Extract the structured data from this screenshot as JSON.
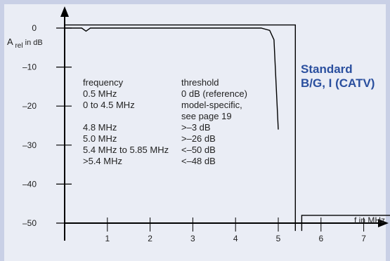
{
  "chart_data": {
    "type": "line",
    "title": "",
    "xlabel": "f in MHz",
    "ylabel_main": "A",
    "ylabel_sub": "rel",
    "ylabel_tail": " in dB",
    "xlim": [
      0,
      7.7
    ],
    "ylim": [
      -52,
      2
    ],
    "x_ticks": [
      1,
      2,
      3,
      4,
      5,
      6,
      7
    ],
    "y_ticks": [
      {
        "value": 0,
        "label": "0"
      },
      {
        "value": -10,
        "label": "–10"
      },
      {
        "value": -20,
        "label": "–20"
      },
      {
        "value": -30,
        "label": "–30"
      },
      {
        "value": -40,
        "label": "–40"
      },
      {
        "value": -50,
        "label": "–50"
      }
    ],
    "series": [
      {
        "name": "",
        "x": [
          0,
          0.4,
          0.5,
          0.6,
          4.6,
          4.8,
          4.9,
          5.0
        ],
        "y": [
          0,
          0,
          -0.8,
          0,
          0,
          -0.6,
          -3,
          -26
        ]
      }
    ],
    "mask": {
      "upper": {
        "x": [
          0,
          5.4,
          5.4
        ],
        "y": [
          0.8,
          0.8,
          -52
        ]
      },
      "floor": {
        "x": [
          5.55,
          5.55,
          7.7
        ],
        "y": [
          -52,
          -48,
          -48
        ]
      },
      "floor_right": {
        "x": [
          7.7
        ],
        "y": [
          -52
        ]
      }
    },
    "annotation": {
      "header": [
        "frequency",
        "threshold"
      ],
      "rows": [
        [
          "0.5 MHz",
          "0 dB (reference)"
        ],
        [
          "0 to 4.5 MHz",
          "model-specific,"
        ],
        [
          "",
          "see page 19"
        ],
        [
          "4.8 MHz",
          ">–3 dB"
        ],
        [
          "5.0 MHz",
          ">–26 dB"
        ],
        [
          "5.4 MHz to 5.85 MHz",
          "<–50 dB"
        ],
        [
          ">5.4 MHz",
          "<–48 dB"
        ]
      ]
    },
    "standard_label": [
      "Standard",
      "B/G, I (CATV)"
    ],
    "colors": {
      "background": "#c9d0e6",
      "panel": "#eaedf5",
      "standard": "#2a4f9e",
      "line": "#000000"
    }
  }
}
